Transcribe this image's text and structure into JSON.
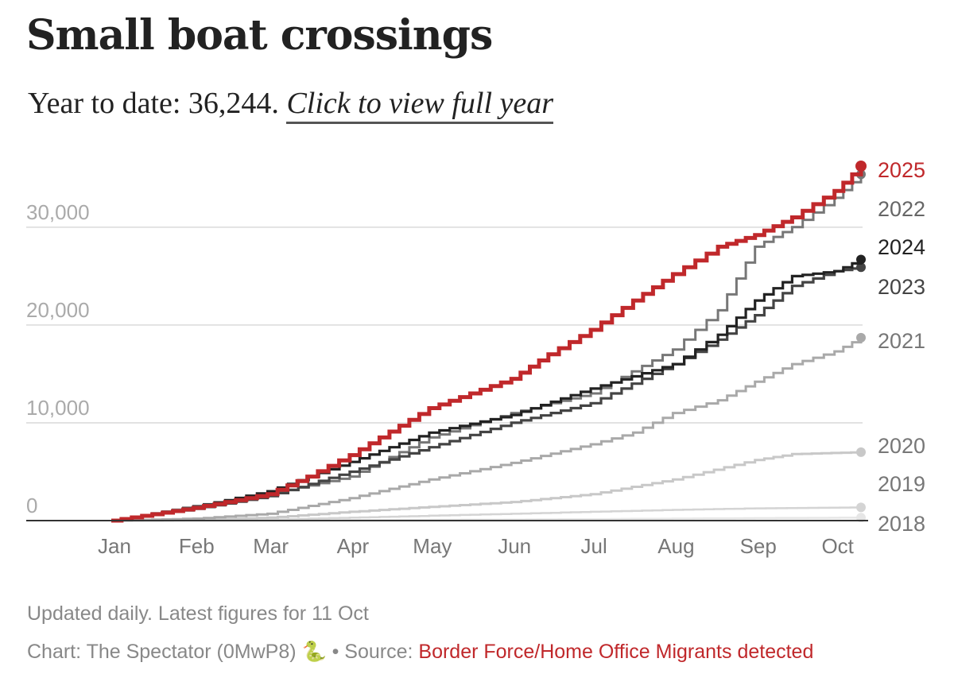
{
  "title": "Small boat crossings",
  "subtitle": {
    "prefix": "Year to date: 36,244. ",
    "link": "Click to view full year"
  },
  "footer": {
    "updated": "Updated daily. Latest figures for 11 Oct",
    "credit_prefix": "Chart: The Spectator (0MwP8) 🐍 • Source: ",
    "credit_link": "Border Force/Home Office Migrants detected"
  },
  "colors": {
    "2025": "#c0282b",
    "2024": "#222222",
    "2023": "#444444",
    "2022": "#777777",
    "2021": "#a9a9a9",
    "2020": "#c8c8c8",
    "2019": "#d4d4d4",
    "2018": "#e6e6e6",
    "axis": "#333333",
    "grid": "#e2e2e2",
    "tick": "#aaaaaa",
    "month": "#777777"
  },
  "chart_data": {
    "type": "line",
    "title": "Small boat crossings",
    "x_unit": "day of year",
    "xlim": [
      1,
      284
    ],
    "ylim": [
      0,
      36244
    ],
    "y_ticks": [
      0,
      10000,
      20000,
      30000
    ],
    "y_tick_labels": [
      "0",
      "10,000",
      "20,000",
      "30,000"
    ],
    "months": [
      {
        "label": "Jan",
        "day": 1
      },
      {
        "label": "Feb",
        "day": 32
      },
      {
        "label": "Mar",
        "day": 60
      },
      {
        "label": "Apr",
        "day": 91
      },
      {
        "label": "May",
        "day": 121
      },
      {
        "label": "Jun",
        "day": 152
      },
      {
        "label": "Jul",
        "day": 182
      },
      {
        "label": "Aug",
        "day": 213
      },
      {
        "label": "Sep",
        "day": 244
      },
      {
        "label": "Oct",
        "day": 274
      }
    ],
    "grid": true,
    "legend": "end-of-line labels",
    "series": [
      {
        "name": "2018",
        "label": "2018",
        "end_marker": true,
        "points": [
          [
            1,
            0
          ],
          [
            60,
            30
          ],
          [
            121,
            80
          ],
          [
            182,
            150
          ],
          [
            244,
            250
          ],
          [
            284,
            300
          ]
        ]
      },
      {
        "name": "2019",
        "label": "2019",
        "end_marker": true,
        "points": [
          [
            1,
            0
          ],
          [
            40,
            50
          ],
          [
            60,
            100
          ],
          [
            91,
            300
          ],
          [
            121,
            500
          ],
          [
            152,
            700
          ],
          [
            182,
            900
          ],
          [
            213,
            1100
          ],
          [
            244,
            1250
          ],
          [
            284,
            1350
          ]
        ]
      },
      {
        "name": "2020",
        "label": "2020",
        "end_marker": true,
        "points": [
          [
            1,
            0
          ],
          [
            32,
            50
          ],
          [
            60,
            300
          ],
          [
            91,
            900
          ],
          [
            121,
            1400
          ],
          [
            152,
            1900
          ],
          [
            182,
            2700
          ],
          [
            213,
            4200
          ],
          [
            244,
            6200
          ],
          [
            258,
            6800
          ],
          [
            284,
            7000
          ]
        ]
      },
      {
        "name": "2021",
        "label": "2021",
        "end_marker": true,
        "points": [
          [
            1,
            0
          ],
          [
            32,
            200
          ],
          [
            60,
            700
          ],
          [
            91,
            2300
          ],
          [
            121,
            4200
          ],
          [
            152,
            5900
          ],
          [
            182,
            7800
          ],
          [
            198,
            9000
          ],
          [
            213,
            11000
          ],
          [
            230,
            12300
          ],
          [
            244,
            14200
          ],
          [
            258,
            16000
          ],
          [
            274,
            17300
          ],
          [
            284,
            18700
          ]
        ]
      },
      {
        "name": "2022",
        "label": "2022",
        "end_marker": true,
        "points": [
          [
            1,
            0
          ],
          [
            32,
            1500
          ],
          [
            60,
            2700
          ],
          [
            91,
            4500
          ],
          [
            121,
            8500
          ],
          [
            152,
            11000
          ],
          [
            182,
            13000
          ],
          [
            213,
            17500
          ],
          [
            230,
            21500
          ],
          [
            244,
            28000
          ],
          [
            258,
            30000
          ],
          [
            274,
            33000
          ],
          [
            284,
            35400
          ]
        ]
      },
      {
        "name": "2023",
        "label": "2023",
        "end_marker": true,
        "points": [
          [
            1,
            0
          ],
          [
            32,
            1200
          ],
          [
            60,
            2500
          ],
          [
            91,
            5000
          ],
          [
            121,
            7500
          ],
          [
            152,
            10000
          ],
          [
            182,
            12000
          ],
          [
            213,
            16000
          ],
          [
            230,
            18500
          ],
          [
            244,
            21000
          ],
          [
            258,
            24000
          ],
          [
            274,
            25500
          ],
          [
            284,
            25900
          ]
        ]
      },
      {
        "name": "2024",
        "label": "2024",
        "end_marker": true,
        "points": [
          [
            1,
            0
          ],
          [
            32,
            1400
          ],
          [
            60,
            3000
          ],
          [
            91,
            6000
          ],
          [
            121,
            9000
          ],
          [
            152,
            10800
          ],
          [
            182,
            13500
          ],
          [
            213,
            16000
          ],
          [
            230,
            19000
          ],
          [
            244,
            22500
          ],
          [
            258,
            25000
          ],
          [
            274,
            25500
          ],
          [
            284,
            26700
          ]
        ]
      },
      {
        "name": "2025",
        "label": "2025",
        "end_marker": true,
        "points": [
          [
            1,
            0
          ],
          [
            32,
            1300
          ],
          [
            60,
            2700
          ],
          [
            75,
            4500
          ],
          [
            91,
            6700
          ],
          [
            121,
            11500
          ],
          [
            152,
            14500
          ],
          [
            166,
            17000
          ],
          [
            182,
            19500
          ],
          [
            198,
            22500
          ],
          [
            213,
            25200
          ],
          [
            230,
            28000
          ],
          [
            244,
            29200
          ],
          [
            258,
            31000
          ],
          [
            274,
            33700
          ],
          [
            284,
            36244
          ]
        ]
      }
    ]
  }
}
